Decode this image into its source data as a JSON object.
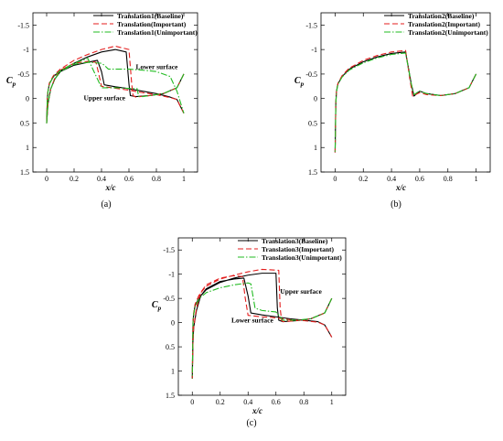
{
  "chart_data": [
    {
      "type": "line",
      "panel_label": "(a)",
      "xlabel": "x/c",
      "ylabel": "Cp",
      "xlim": [
        -0.1,
        1.1
      ],
      "ylim": [
        1.5,
        -1.75
      ],
      "x_ticks": [
        0,
        0.2,
        0.4,
        0.6,
        0.8,
        1
      ],
      "x_tick_labels": [
        "0",
        "0.2",
        "0.4",
        "0.6",
        "0.8",
        "1"
      ],
      "y_ticks": [
        -1.5,
        -1,
        -0.5,
        0,
        0.5,
        1,
        1.5
      ],
      "y_tick_labels": [
        "-1.5",
        "-1",
        "-0.5",
        "0",
        "0.5",
        "1",
        "1.5"
      ],
      "grid": false,
      "legend_position": "top-right",
      "annotations": [
        {
          "text": "Lower surface",
          "x": 0.65,
          "y": -0.6
        },
        {
          "text": "Upper surface",
          "x": 0.27,
          "y": 0.03
        }
      ],
      "series": [
        {
          "name": "Translation1(Baseline)",
          "color": "#000000",
          "dash": "solid",
          "x": [
            1.0,
            0.95,
            0.85,
            0.75,
            0.65,
            0.61,
            0.6,
            0.58,
            0.5,
            0.4,
            0.3,
            0.2,
            0.1,
            0.05,
            0.02,
            0.01,
            0.005,
            0.0,
            0.005,
            0.01,
            0.03,
            0.06,
            0.1,
            0.2,
            0.3,
            0.37,
            0.4,
            0.42,
            0.5,
            0.6,
            0.7,
            0.8,
            0.9,
            0.95,
            1.0
          ],
          "y": [
            -0.5,
            -0.22,
            -0.1,
            -0.06,
            -0.04,
            -0.06,
            -0.3,
            -0.95,
            -1.0,
            -0.95,
            -0.85,
            -0.72,
            -0.57,
            -0.45,
            -0.3,
            -0.15,
            0.0,
            0.5,
            0.3,
            0.1,
            -0.2,
            -0.4,
            -0.55,
            -0.68,
            -0.74,
            -0.78,
            -0.55,
            -0.28,
            -0.24,
            -0.2,
            -0.15,
            -0.1,
            -0.03,
            0.02,
            0.3
          ]
        },
        {
          "name": "Translation(Important)",
          "color": "#e41e1e",
          "dash": "dashed",
          "x": [
            1.0,
            0.95,
            0.85,
            0.75,
            0.65,
            0.63,
            0.62,
            0.6,
            0.5,
            0.4,
            0.3,
            0.2,
            0.1,
            0.05,
            0.02,
            0.01,
            0.005,
            0.0,
            0.005,
            0.01,
            0.03,
            0.06,
            0.1,
            0.2,
            0.3,
            0.36,
            0.38,
            0.4,
            0.5,
            0.6,
            0.7,
            0.8,
            0.9,
            0.95,
            1.0
          ],
          "y": [
            -0.5,
            -0.22,
            -0.1,
            -0.06,
            -0.03,
            -0.06,
            -0.3,
            -1.0,
            -1.07,
            -1.0,
            -0.9,
            -0.78,
            -0.6,
            -0.47,
            -0.32,
            -0.16,
            0.0,
            0.5,
            0.3,
            0.1,
            -0.2,
            -0.42,
            -0.58,
            -0.72,
            -0.76,
            -0.74,
            -0.5,
            -0.25,
            -0.21,
            -0.17,
            -0.12,
            -0.08,
            -0.02,
            0.02,
            0.3
          ]
        },
        {
          "name": "Translation1(Unimportant)",
          "color": "#22bb22",
          "dash": "dashdot",
          "x": [
            1.0,
            0.95,
            0.85,
            0.75,
            0.7,
            0.67,
            0.66,
            0.65,
            0.5,
            0.4,
            0.3,
            0.2,
            0.1,
            0.05,
            0.02,
            0.01,
            0.005,
            0.0,
            0.005,
            0.01,
            0.03,
            0.06,
            0.1,
            0.2,
            0.3,
            0.4,
            0.42,
            0.45,
            0.5,
            0.6,
            0.7,
            0.8,
            0.9,
            0.95,
            1.0
          ],
          "y": [
            -0.5,
            -0.22,
            -0.1,
            -0.06,
            -0.04,
            -0.05,
            -0.2,
            -0.2,
            -0.22,
            -0.22,
            -0.82,
            -0.72,
            -0.57,
            -0.45,
            -0.3,
            -0.15,
            0.0,
            0.5,
            0.3,
            0.1,
            -0.2,
            -0.4,
            -0.55,
            -0.7,
            -0.74,
            -0.72,
            -0.68,
            -0.6,
            -0.6,
            -0.6,
            -0.58,
            -0.55,
            -0.45,
            -0.15,
            0.3
          ]
        }
      ]
    },
    {
      "type": "line",
      "panel_label": "(b)",
      "xlabel": "x/c",
      "ylabel": "Cp",
      "xlim": [
        -0.1,
        1.1
      ],
      "ylim": [
        1.5,
        -1.75
      ],
      "x_ticks": [
        0,
        0.2,
        0.4,
        0.6,
        0.8,
        1
      ],
      "x_tick_labels": [
        "0",
        "0.2",
        "0.4",
        "0.6",
        "0.8",
        "1"
      ],
      "y_ticks": [
        -1.5,
        -1,
        -0.5,
        0,
        0.5,
        1,
        1.5
      ],
      "y_tick_labels": [
        "-1.5",
        "-1",
        "-0.5",
        "0",
        "0.5",
        "1",
        "1.5"
      ],
      "grid": false,
      "legend_position": "top-right",
      "annotations": [],
      "series": [
        {
          "name": "Translation2(Baseline)",
          "color": "#000000",
          "dash": "solid",
          "x": [
            1.0,
            0.95,
            0.85,
            0.75,
            0.65,
            0.6,
            0.58,
            0.56,
            0.54,
            0.5,
            0.4,
            0.3,
            0.2,
            0.1,
            0.05,
            0.02,
            0.01,
            0.005,
            0.0
          ],
          "y": [
            -0.5,
            -0.22,
            -0.1,
            -0.06,
            -0.1,
            -0.15,
            -0.1,
            -0.05,
            -0.3,
            -0.95,
            -0.92,
            -0.85,
            -0.75,
            -0.6,
            -0.45,
            -0.3,
            -0.15,
            0.1,
            1.1
          ]
        },
        {
          "name": "Translation2(Important)",
          "color": "#e41e1e",
          "dash": "dashed",
          "x": [
            1.0,
            0.95,
            0.85,
            0.75,
            0.65,
            0.6,
            0.57,
            0.55,
            0.53,
            0.5,
            0.4,
            0.3,
            0.2,
            0.1,
            0.05,
            0.02,
            0.01,
            0.005,
            0.0
          ],
          "y": [
            -0.5,
            -0.22,
            -0.1,
            -0.06,
            -0.08,
            -0.12,
            -0.08,
            -0.05,
            -0.4,
            -0.98,
            -0.95,
            -0.88,
            -0.78,
            -0.62,
            -0.47,
            -0.31,
            -0.16,
            0.1,
            1.1
          ]
        },
        {
          "name": "Translation2(Unimportant)",
          "color": "#22bb22",
          "dash": "dashdot",
          "x": [
            1.0,
            0.95,
            0.85,
            0.75,
            0.65,
            0.6,
            0.58,
            0.56,
            0.54,
            0.5,
            0.4,
            0.3,
            0.2,
            0.1,
            0.05,
            0.02,
            0.01,
            0.005,
            0.0
          ],
          "y": [
            -0.5,
            -0.22,
            -0.1,
            -0.06,
            -0.1,
            -0.15,
            -0.12,
            -0.08,
            -0.3,
            -0.93,
            -0.9,
            -0.83,
            -0.73,
            -0.58,
            -0.44,
            -0.29,
            -0.14,
            0.1,
            1.1
          ]
        }
      ]
    },
    {
      "type": "line",
      "panel_label": "(c)",
      "xlabel": "x/c",
      "ylabel": "Cp",
      "xlim": [
        -0.1,
        1.1
      ],
      "ylim": [
        1.5,
        -1.75
      ],
      "x_ticks": [
        0,
        0.2,
        0.4,
        0.6,
        0.8,
        1
      ],
      "x_tick_labels": [
        "0",
        "0.2",
        "0.4",
        "0.6",
        "0.8",
        "1"
      ],
      "y_ticks": [
        -1.5,
        -1,
        -0.5,
        0,
        0.5,
        1,
        1.5
      ],
      "y_tick_labels": [
        "-1.5",
        "-1",
        "-0.5",
        "0",
        "0.5",
        "1",
        "1.5"
      ],
      "grid": false,
      "legend_position": "top-right",
      "annotations": [
        {
          "text": "Upper surface",
          "x": 0.63,
          "y": -0.6
        },
        {
          "text": "Lower surface",
          "x": 0.28,
          "y": 0.0
        }
      ],
      "series": [
        {
          "name": "Translation3(Baseline)",
          "color": "#000000",
          "dash": "solid",
          "x": [
            1.0,
            0.95,
            0.85,
            0.75,
            0.65,
            0.62,
            0.61,
            0.6,
            0.5,
            0.4,
            0.3,
            0.2,
            0.1,
            0.05,
            0.02,
            0.01,
            0.005,
            0.0,
            0.005,
            0.01,
            0.03,
            0.06,
            0.1,
            0.2,
            0.3,
            0.37,
            0.4,
            0.42,
            0.5,
            0.6,
            0.7,
            0.8,
            0.9,
            0.95,
            1.0
          ],
          "y": [
            -0.5,
            -0.2,
            -0.08,
            -0.04,
            -0.02,
            -0.05,
            -0.3,
            -1.02,
            -1.02,
            -0.98,
            -0.92,
            -0.83,
            -0.68,
            -0.52,
            -0.35,
            -0.18,
            0.0,
            1.15,
            0.4,
            0.1,
            -0.25,
            -0.55,
            -0.7,
            -0.85,
            -0.9,
            -0.92,
            -0.55,
            -0.2,
            -0.16,
            -0.12,
            -0.08,
            -0.05,
            -0.02,
            0.05,
            0.3
          ]
        },
        {
          "name": "Translation3(Important)",
          "color": "#e41e1e",
          "dash": "dashed",
          "x": [
            1.0,
            0.95,
            0.85,
            0.75,
            0.65,
            0.64,
            0.63,
            0.62,
            0.5,
            0.4,
            0.3,
            0.2,
            0.1,
            0.05,
            0.02,
            0.01,
            0.005,
            0.0,
            0.005,
            0.01,
            0.03,
            0.06,
            0.1,
            0.2,
            0.3,
            0.36,
            0.38,
            0.4,
            0.5,
            0.6,
            0.7,
            0.8,
            0.9,
            0.95,
            1.0
          ],
          "y": [
            -0.5,
            -0.2,
            -0.08,
            -0.04,
            -0.02,
            -0.05,
            -0.3,
            -1.08,
            -1.1,
            -1.05,
            -0.98,
            -0.9,
            -0.75,
            -0.58,
            -0.38,
            -0.2,
            0.0,
            1.15,
            0.4,
            0.1,
            -0.3,
            -0.62,
            -0.78,
            -0.92,
            -0.97,
            -0.95,
            -0.5,
            -0.15,
            -0.12,
            -0.1,
            -0.06,
            -0.04,
            -0.01,
            0.05,
            0.3
          ]
        },
        {
          "name": "Translation3(Unimportant)",
          "color": "#22bb22",
          "dash": "dashdot",
          "x": [
            1.0,
            0.95,
            0.85,
            0.75,
            0.65,
            0.6,
            0.5,
            0.45,
            0.42,
            0.4,
            0.3,
            0.2,
            0.1,
            0.05,
            0.02,
            0.01,
            0.005,
            0.0
          ],
          "y": [
            -0.5,
            -0.2,
            -0.08,
            -0.05,
            -0.05,
            -0.22,
            -0.25,
            -0.3,
            -0.8,
            -0.82,
            -0.78,
            -0.72,
            -0.62,
            -0.5,
            -0.33,
            -0.17,
            0.0,
            1.15
          ]
        }
      ]
    }
  ]
}
